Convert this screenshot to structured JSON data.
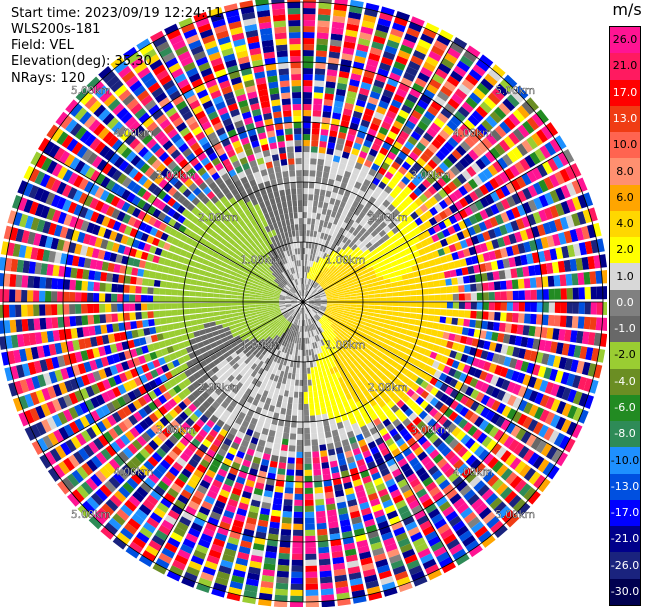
{
  "header": {
    "start_time": "Start time: 2023/09/19 12:24:11",
    "instrument": "WLS200s-181",
    "field": "Field: VEL",
    "elevation": "Elevation(deg): 35.30",
    "nrays": "NRays: 120"
  },
  "chart_data": {
    "type": "heatmap",
    "projection": "polar-ppi",
    "field": "VEL",
    "unit": "m/s",
    "n_rays": 120,
    "range_rings_km": [
      1.0,
      2.0,
      3.0,
      4.0,
      5.0
    ],
    "ring_labels": {
      "1": "1.00km",
      "2": "2.00km",
      "3": "3.00km",
      "4": "4.00km",
      "5": "5.00km"
    },
    "spokes_deg": [
      0,
      30,
      60,
      90,
      120,
      150,
      180,
      210,
      240,
      270,
      300,
      330
    ],
    "colorbar": {
      "ticks": [
        "26.0",
        "21.0",
        "17.0",
        "13.0",
        "10.0",
        "8.0",
        "6.0",
        "4.0",
        "2.0",
        "1.0",
        "0.0",
        "-1.0",
        "-2.0",
        "-4.0",
        "-6.0",
        "-8.0",
        "-10.0",
        "-13.0",
        "-17.0",
        "-21.0",
        "-26.0",
        "-30.0"
      ],
      "colors": [
        "#ff1493",
        "#ff1a60",
        "#ff0000",
        "#f03c14",
        "#ff6450",
        "#ff9070",
        "#ffa500",
        "#ffd700",
        "#ffff00",
        "#d8d8d8",
        "#808080",
        "#686868",
        "#9acd32",
        "#6b8e23",
        "#228b22",
        "#2e8b57",
        "#1e90ff",
        "#0050e0",
        "#0000ff",
        "#00008b",
        "#1a237e",
        "#000050"
      ]
    },
    "observed_pattern": {
      "clear_range_km": 2.5,
      "near_field": "receding (positive, yellow) on east side, approaching (negative, green) on west side, bowed dipole",
      "far_field": "noise (all colors) beyond ~2.5 km"
    }
  }
}
